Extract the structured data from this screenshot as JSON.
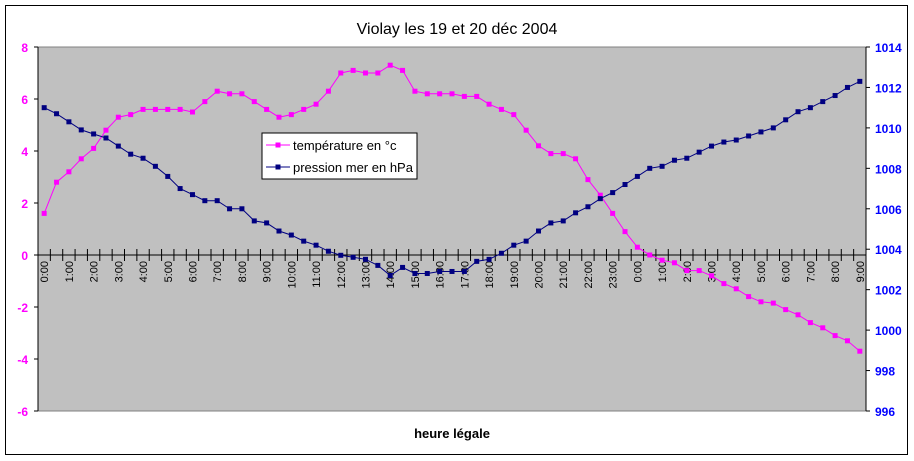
{
  "chart_data": {
    "type": "line",
    "title": "Violay les 19 et 20 déc 2004",
    "xlabel": "heure légale",
    "x_tick_labels": [
      "0:00",
      "1:00",
      "2:00",
      "3:00",
      "4:00",
      "5:00",
      "6:00",
      "7:00",
      "8:00",
      "9:00",
      "10:00",
      "11:00",
      "12:00",
      "13:00",
      "14:00",
      "15:00",
      "16:00",
      "17:00",
      "18:00",
      "19:00",
      "20:00",
      "21:00",
      "22:00",
      "23:00",
      "0:00",
      "1:00",
      "2:00",
      "3:00",
      "4:00",
      "5:00",
      "6:00",
      "7:00",
      "8:00",
      "9:00"
    ],
    "points_per_hour": 2,
    "y_left": {
      "min": -6,
      "max": 8,
      "step": 2,
      "color": "#ff00ff"
    },
    "y_right": {
      "min": 996,
      "max": 1014,
      "step": 2,
      "color": "#0000ff"
    },
    "legend_placement": "center-left inside plot",
    "series": [
      {
        "name": "température en °c",
        "axis": "left",
        "color": "#ff00ff",
        "values": [
          1.6,
          2.8,
          3.2,
          3.7,
          4.1,
          4.8,
          5.3,
          5.4,
          5.6,
          5.6,
          5.6,
          5.6,
          5.5,
          5.9,
          6.3,
          6.2,
          6.2,
          5.9,
          5.6,
          5.3,
          5.4,
          5.6,
          5.8,
          6.3,
          7.0,
          7.1,
          7.0,
          7.0,
          7.3,
          7.1,
          6.3,
          6.2,
          6.2,
          6.2,
          6.1,
          6.1,
          5.8,
          5.6,
          5.4,
          4.8,
          4.2,
          3.9,
          3.9,
          3.7,
          2.9,
          2.3,
          1.6,
          0.9,
          0.3,
          0.0,
          -0.2,
          -0.3,
          -0.6,
          -0.6,
          -0.8,
          -1.1,
          -1.3,
          -1.6,
          -1.8,
          -1.85,
          -2.1,
          -2.3,
          -2.6,
          -2.8,
          -3.1,
          -3.3,
          -3.7
        ]
      },
      {
        "name": "pression mer en hPa",
        "axis": "right",
        "color": "#000080",
        "values": [
          1011.0,
          1010.7,
          1010.3,
          1009.9,
          1009.7,
          1009.5,
          1009.1,
          1008.7,
          1008.5,
          1008.1,
          1007.6,
          1007.0,
          1006.7,
          1006.4,
          1006.4,
          1006.0,
          1006.0,
          1005.4,
          1005.3,
          1004.9,
          1004.7,
          1004.4,
          1004.2,
          1003.9,
          1003.7,
          1003.6,
          1003.5,
          1003.2,
          1002.7,
          1003.1,
          1002.8,
          1002.8,
          1002.9,
          1002.9,
          1002.9,
          1003.4,
          1003.5,
          1003.8,
          1004.2,
          1004.4,
          1004.9,
          1005.3,
          1005.4,
          1005.8,
          1006.1,
          1006.5,
          1006.8,
          1007.2,
          1007.6,
          1008.0,
          1008.1,
          1008.4,
          1008.5,
          1008.8,
          1009.1,
          1009.3,
          1009.4,
          1009.6,
          1009.8,
          1010.0,
          1010.4,
          1010.8,
          1011.0,
          1011.3,
          1011.6,
          1012.0,
          1012.3
        ]
      }
    ]
  }
}
